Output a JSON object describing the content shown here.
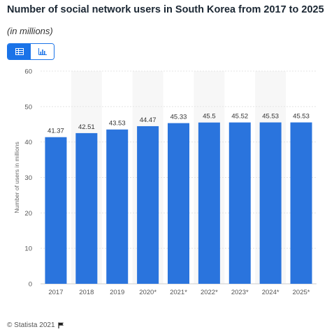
{
  "header": {
    "title": "Number of social network users in South Korea from 2017 to 2025",
    "subtitle": "(in millions)"
  },
  "view_toggle": {
    "table_icon": "table-icon",
    "chart_icon": "bar-chart-icon",
    "active": "table",
    "active_color": "#1a73e8"
  },
  "footer": {
    "copyright": "© Statista 2021",
    "flag_icon": "flag-icon"
  },
  "chart_data": {
    "type": "bar",
    "categories": [
      "2017",
      "2018",
      "2019",
      "2020*",
      "2021*",
      "2022*",
      "2023*",
      "2024*",
      "2025*"
    ],
    "values": [
      41.37,
      42.51,
      43.53,
      44.47,
      45.33,
      45.5,
      45.52,
      45.53,
      45.53
    ],
    "value_labels": [
      "41.37",
      "42.51",
      "43.53",
      "44.47",
      "45.33",
      "45.5",
      "45.52",
      "45.53",
      "45.53"
    ],
    "ylabel": "Number of users in millions",
    "ylim": [
      0,
      60
    ],
    "yticks": [
      "0",
      "10",
      "20",
      "30",
      "40",
      "50",
      "60"
    ],
    "grid": true,
    "bar_color": "#2a74dd",
    "stripe_color": "#f7f7f7"
  }
}
